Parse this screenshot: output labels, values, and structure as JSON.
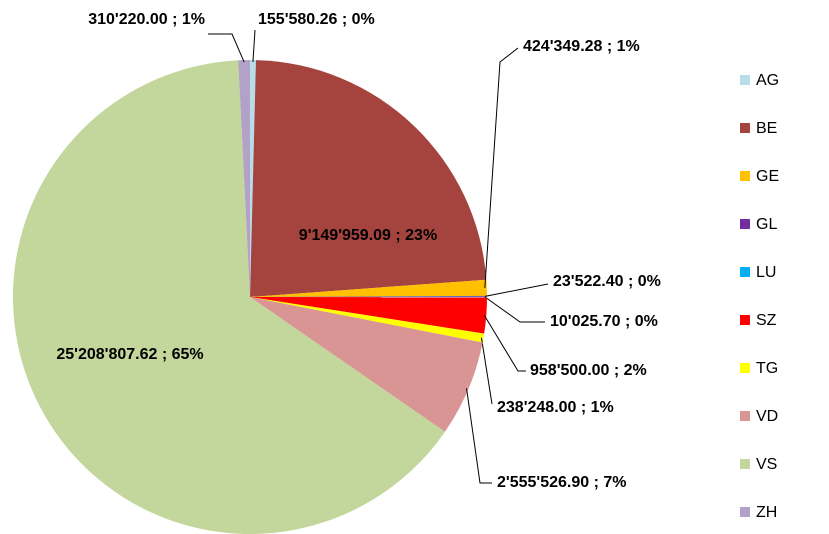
{
  "chart_data": {
    "type": "pie",
    "categories": [
      "AG",
      "BE",
      "GE",
      "GL",
      "LU",
      "SZ",
      "TG",
      "VD",
      "VS",
      "ZH"
    ],
    "values": [
      155580.26,
      9149959.09,
      424349.28,
      23522.4,
      10025.7,
      958500.0,
      238248.0,
      2555526.9,
      25208807.62,
      310220.0
    ],
    "value_labels": [
      "155'580.26 ; 0%",
      "9'149'959.09 ; 23%",
      "424'349.28 ; 1%",
      "23'522.40 ; 0%",
      "10'025.70 ; 0%",
      "958'500.00 ; 2%",
      "238'248.00 ; 1%",
      "2'555'526.90 ; 7%",
      "25'208'807.62 ; 65%",
      "310'220.00 ; 1%"
    ],
    "colors": [
      "#b7dee8",
      "#a5443f",
      "#ffc000",
      "#7030a0",
      "#00b0f0",
      "#ff0000",
      "#ffff00",
      "#d99594",
      "#c3d69b",
      "#b3a2c7"
    ],
    "legend": "right"
  }
}
